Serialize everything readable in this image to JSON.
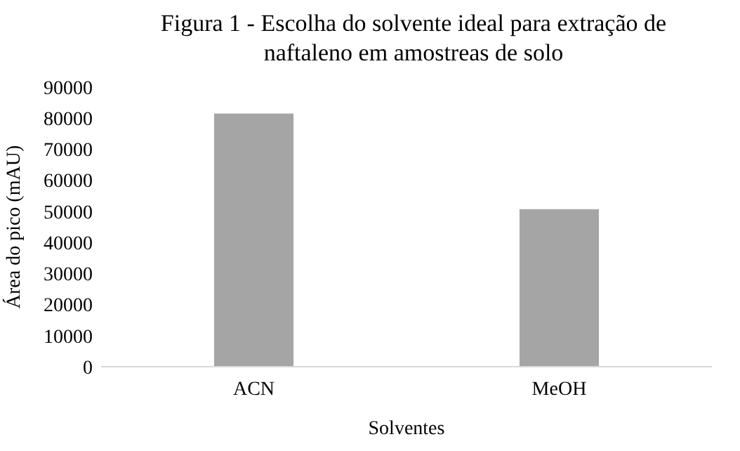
{
  "chart_data": {
    "type": "bar",
    "title": "Figura  1 - Escolha do solvente ideal para extração de naftaleno  em amostreas de solo",
    "xlabel": "Solventes",
    "ylabel": "Área do pico  (mAU)",
    "categories": [
      "ACN",
      "MeOH"
    ],
    "values": [
      81500,
      50700
    ],
    "color": "#a5a5a5",
    "ylim": [
      0,
      90000
    ],
    "yticks": [
      0,
      10000,
      20000,
      30000,
      40000,
      50000,
      60000,
      70000,
      80000,
      90000
    ],
    "grid": false
  }
}
